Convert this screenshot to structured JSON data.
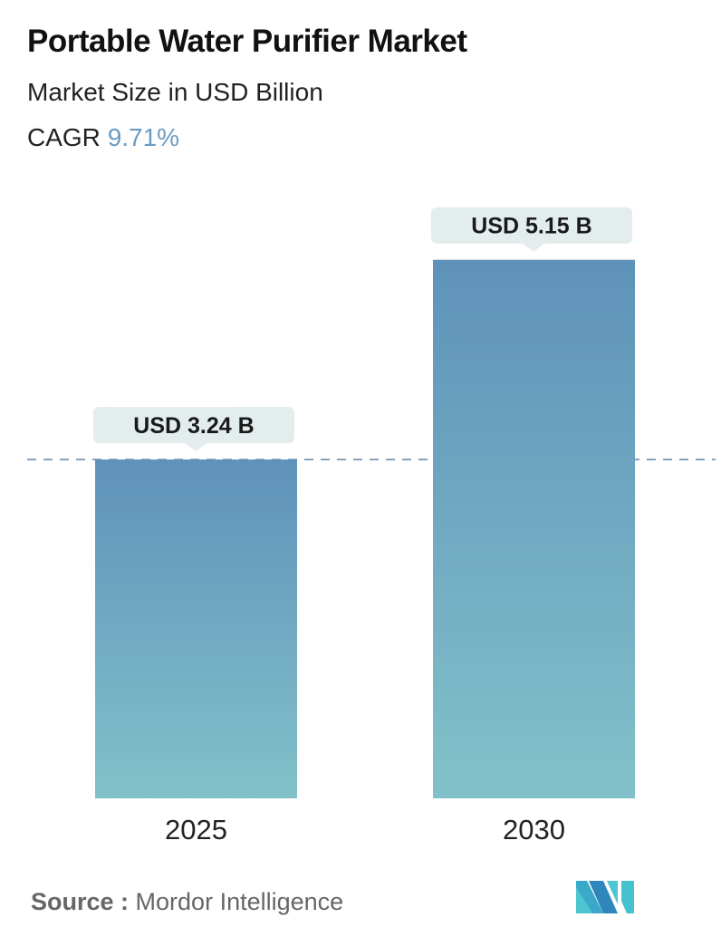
{
  "title": "Portable Water Purifier Market",
  "subtitle": "Market Size in USD Billion",
  "cagr_label": "CAGR",
  "cagr_value": "9.71%",
  "source_label": "Source :",
  "source_value": "Mordor Intelligence",
  "colors": {
    "bar_top": "#5f92ba",
    "bar_bottom": "#82c1c9",
    "label_bg": "#e4edee",
    "cagr": "#6a9bc3",
    "dashed_line": "#5f84a8"
  },
  "chart_data": {
    "type": "bar",
    "categories": [
      "2025",
      "2030"
    ],
    "values": [
      3.24,
      5.15
    ],
    "data_labels": [
      "USD 3.24 B",
      "USD 5.15 B"
    ],
    "unit": "USD Billion",
    "reference_line": 3.24,
    "grid": false
  }
}
